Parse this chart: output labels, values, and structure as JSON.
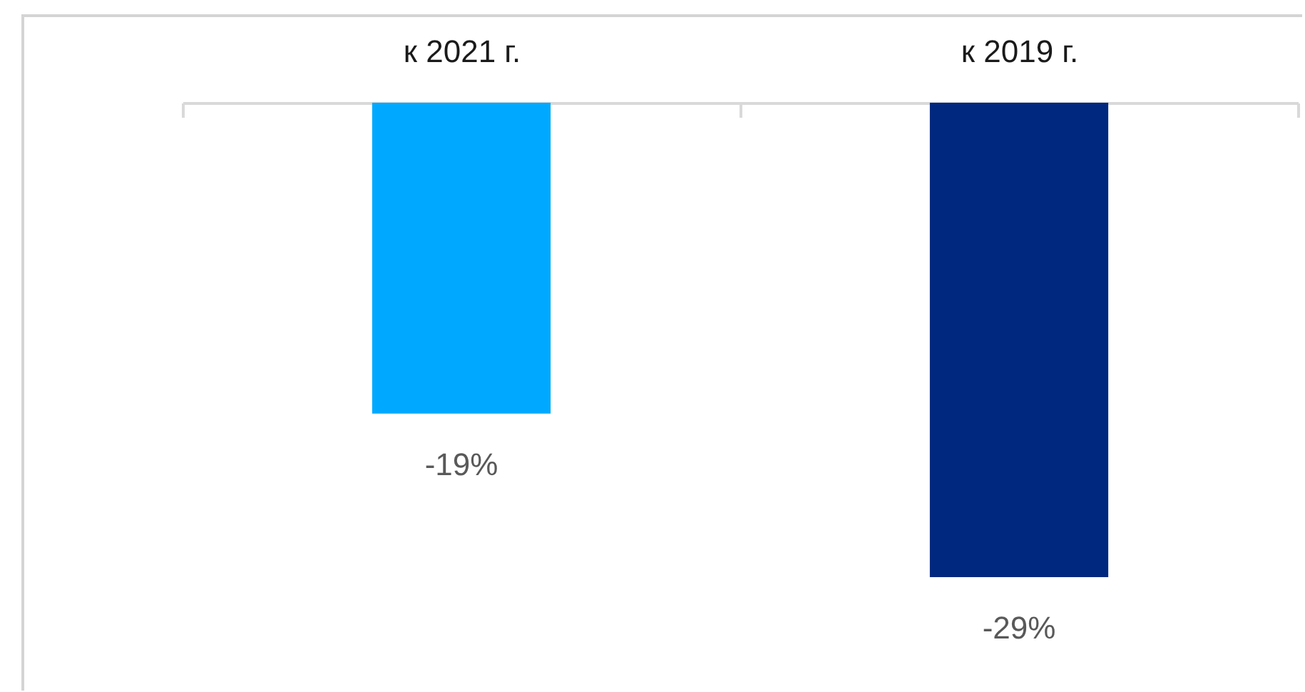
{
  "chart_data": {
    "type": "bar",
    "categories": [
      "к 2021 г.",
      "к 2019 г."
    ],
    "values": [
      -19,
      -29
    ],
    "colors": [
      "#00a9ff",
      "#00287f"
    ],
    "value_labels": [
      "-19%",
      "-29%"
    ],
    "tick_labels": "x"
  }
}
